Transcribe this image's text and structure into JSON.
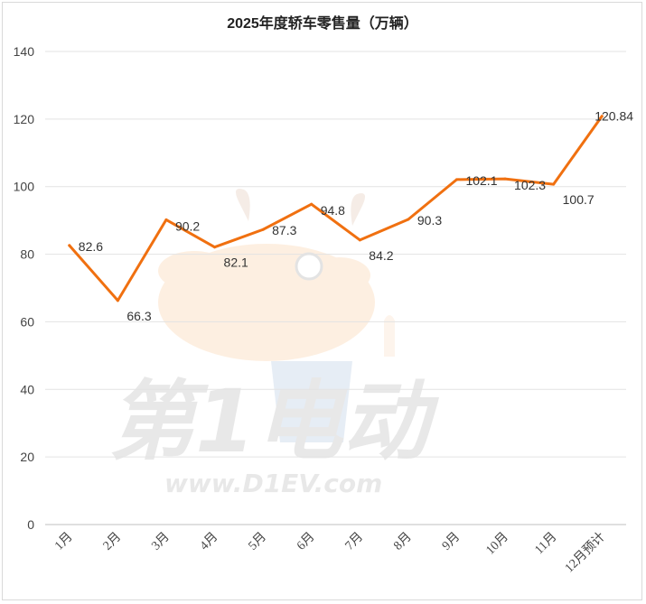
{
  "chart_data": {
    "type": "line",
    "title": "2025年度轿车零售量（万辆）",
    "categories": [
      "1月",
      "2月",
      "3月",
      "4月",
      "5月",
      "6月",
      "7月",
      "8月",
      "9月",
      "10月",
      "11月",
      "12月预计"
    ],
    "series": [
      {
        "values": [
          82.6,
          66.3,
          90.2,
          82.1,
          87.3,
          94.8,
          84.2,
          90.3,
          102.1,
          102.3,
          100.7,
          120.84
        ]
      }
    ],
    "data_labels": [
      "82.6",
      "66.3",
      "90.2",
      "82.1",
      "87.3",
      "94.8",
      "84.2",
      "90.3",
      "102.1",
      "102.3",
      "100.7",
      "120.84"
    ],
    "y_ticks": [
      "0",
      "20",
      "40",
      "60",
      "80",
      "100",
      "120",
      "140"
    ],
    "ylim": [
      0,
      140
    ],
    "grid": true,
    "legend": "none",
    "line_color": "#f07010"
  },
  "watermark": {
    "brand": "第1电动",
    "url": "www.D1EV.com"
  }
}
